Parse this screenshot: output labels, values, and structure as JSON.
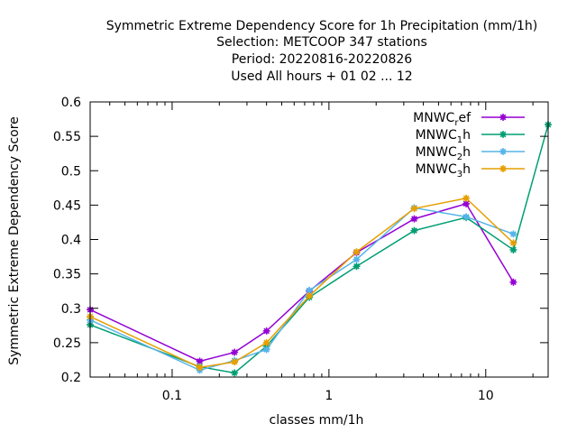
{
  "chart_data": {
    "type": "line",
    "title_lines": [
      "Symmetric Extreme Dependency Score  for 1h Precipitation (mm/1h)",
      "Selection: METCOOP    347 stations",
      "Period: 20220816-20220826",
      "Used  All hours + 01 02 ... 12"
    ],
    "xlabel": "classes mm/1h",
    "ylabel": "Symmetric Extreme Dependency Score",
    "x_scale": "log",
    "xlim": [
      0.03,
      25
    ],
    "ylim": [
      0.2,
      0.6
    ],
    "y_ticks": [
      "0.2",
      "0.25",
      "0.3",
      "0.35",
      "0.4",
      "0.45",
      "0.5",
      "0.55",
      "0.6"
    ],
    "x_ticks": [
      "0.1",
      "1",
      "10"
    ],
    "legend_position": "top-right",
    "x": [
      0.03,
      0.15,
      0.25,
      0.4,
      0.75,
      1.5,
      3.5,
      7.5,
      15,
      25
    ],
    "series": [
      {
        "name": "MNWC",
        "sub": "r",
        "suffix": "ef",
        "color": "#9400d3",
        "values": [
          0.298,
          0.223,
          0.236,
          0.267,
          0.325,
          0.381,
          0.43,
          0.452,
          0.338,
          null
        ]
      },
      {
        "name": "MNWC",
        "sub": "1",
        "suffix": "h",
        "color": "#009e73",
        "values": [
          0.276,
          0.215,
          0.206,
          0.245,
          0.316,
          0.361,
          0.413,
          0.432,
          0.385,
          0.567
        ]
      },
      {
        "name": "MNWC",
        "sub": "2",
        "suffix": "h",
        "color": "#56b4e9",
        "values": [
          0.283,
          0.21,
          0.224,
          0.24,
          0.326,
          0.371,
          0.446,
          0.433,
          0.408,
          null
        ]
      },
      {
        "name": "MNWC",
        "sub": "3",
        "suffix": "h",
        "color": "#e69f00",
        "values": [
          0.288,
          0.214,
          0.222,
          0.25,
          0.318,
          0.382,
          0.445,
          0.46,
          0.395,
          null
        ]
      }
    ]
  }
}
